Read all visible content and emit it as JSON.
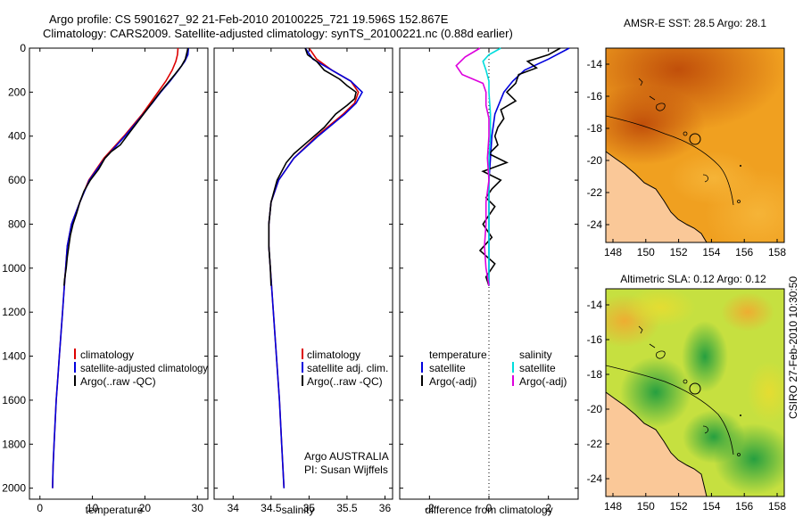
{
  "chart_data": {
    "title": {
      "line1": "Argo profile: CS 5901627_92 21-Feb-2010 20100225_721 19.596S 152.867E",
      "line2": "Climatology: CARS2009. Satellite-adjusted climatology: synTS_20100221.nc (0.88d earlier)"
    },
    "depth_ylim": [
      0,
      2050
    ],
    "depth_ticks": [
      0,
      200,
      400,
      600,
      800,
      1000,
      1200,
      1400,
      1600,
      1800,
      2000
    ],
    "temperature_panel": {
      "type": "line",
      "xlabel": "temperature",
      "xlim": [
        -2,
        32
      ],
      "xticks": [
        0,
        10,
        20,
        30
      ],
      "legend": [
        "climatology",
        "satellite-adjusted climatology",
        "Argo(..raw -QC)"
      ],
      "series": [
        {
          "name": "climatology",
          "color": "#dd0000",
          "depth": [
            0,
            30,
            60,
            100,
            150,
            200,
            250,
            300,
            400,
            500,
            600,
            700,
            800,
            900,
            1000,
            1100,
            1200,
            1300,
            1400,
            1500,
            1600,
            1700,
            1800,
            1900,
            2000
          ],
          "values": [
            26.3,
            26.2,
            25.9,
            25.2,
            24.0,
            22.5,
            21.0,
            19.5,
            16.0,
            12.2,
            9.3,
            7.6,
            6.0,
            5.2,
            4.9,
            4.6,
            4.3,
            4.0,
            3.7,
            3.4,
            3.1,
            2.9,
            2.7,
            2.5,
            2.4
          ]
        },
        {
          "name": "satellite-adjusted climatology",
          "color": "#0000dd",
          "depth": [
            0,
            30,
            60,
            100,
            150,
            200,
            250,
            300,
            400,
            500,
            600,
            700,
            800,
            900,
            1000,
            1100,
            1200,
            1300,
            1400,
            1500,
            1600,
            1700,
            1800,
            1900,
            2000
          ],
          "values": [
            28.3,
            28.2,
            27.6,
            26.4,
            24.8,
            23.0,
            21.4,
            19.7,
            16.2,
            12.4,
            9.4,
            7.6,
            6.0,
            5.2,
            4.9,
            4.6,
            4.3,
            4.0,
            3.7,
            3.4,
            3.1,
            2.9,
            2.7,
            2.5,
            2.4
          ]
        },
        {
          "name": "Argo(..raw -QC)",
          "color": "#000000",
          "depth": [
            0,
            20,
            50,
            80,
            120,
            160,
            200,
            260,
            320,
            380,
            440,
            470,
            500,
            550,
            600,
            650,
            700,
            750,
            800,
            850,
            900,
            950,
            1000,
            1050,
            1080
          ],
          "values": [
            28.2,
            28.0,
            27.7,
            27.0,
            25.7,
            24.3,
            22.9,
            21.0,
            19.1,
            17.2,
            15.3,
            13.6,
            12.4,
            11.2,
            9.6,
            8.4,
            7.6,
            7.0,
            6.3,
            5.8,
            5.5,
            5.2,
            5.0,
            4.7,
            4.6
          ]
        }
      ]
    },
    "salinity_panel": {
      "type": "line",
      "xlabel": "salinity",
      "xlim": [
        33.75,
        36.1
      ],
      "xticks": [
        34,
        34.5,
        35,
        35.5,
        36
      ],
      "xtick_labels": [
        "34",
        "34.5",
        "35",
        "35.5",
        "36"
      ],
      "legend": [
        "climatology",
        "satellite adj. clim.",
        "Argo(..raw -QC)"
      ],
      "annotation": [
        "Argo AUSTRALIA",
        "PI: Susan Wijffels"
      ],
      "series": [
        {
          "name": "climatology",
          "color": "#dd0000",
          "depth": [
            0,
            50,
            100,
            150,
            200,
            250,
            300,
            400,
            500,
            600,
            700,
            800,
            900,
            1000,
            1200,
            1400,
            1600,
            1800,
            2000
          ],
          "values": [
            35.0,
            35.1,
            35.3,
            35.55,
            35.65,
            35.6,
            35.45,
            35.1,
            34.8,
            34.6,
            34.5,
            34.47,
            34.47,
            34.49,
            34.53,
            34.57,
            34.61,
            34.64,
            34.67
          ]
        },
        {
          "name": "satellite adj. clim.",
          "color": "#0000dd",
          "depth": [
            0,
            50,
            100,
            150,
            200,
            250,
            300,
            400,
            500,
            600,
            700,
            800,
            900,
            1000,
            1200,
            1400,
            1600,
            1800,
            2000
          ],
          "values": [
            34.95,
            35.05,
            35.3,
            35.55,
            35.7,
            35.62,
            35.47,
            35.12,
            34.8,
            34.6,
            34.5,
            34.47,
            34.47,
            34.49,
            34.53,
            34.57,
            34.61,
            34.64,
            34.67
          ]
        },
        {
          "name": "Argo(..raw -QC)",
          "color": "#000000",
          "depth": [
            0,
            30,
            60,
            100,
            140,
            170,
            200,
            230,
            260,
            300,
            360,
            420,
            480,
            520,
            600,
            700,
            800,
            900,
            1000,
            1080
          ],
          "values": [
            34.95,
            34.98,
            35.1,
            35.2,
            35.4,
            35.5,
            35.62,
            35.6,
            35.5,
            35.35,
            35.2,
            35.0,
            34.8,
            34.7,
            34.58,
            34.5,
            34.47,
            34.47,
            34.49,
            34.5
          ]
        }
      ]
    },
    "difference_panel": {
      "type": "line",
      "xlabel": "difference from climatology",
      "xlim": [
        -3,
        3
      ],
      "xticks": [
        -2,
        0,
        2
      ],
      "legend_headers": [
        "temperature",
        "salinity"
      ],
      "legend": [
        "satellite",
        "Argo(-adj)",
        "satellite",
        "Argo(-adj)"
      ],
      "series": [
        {
          "name": "temperature satellite",
          "color": "#0000dd",
          "depth": [
            0,
            50,
            100,
            150,
            200,
            300,
            400,
            500,
            600,
            700,
            800,
            1000,
            1080
          ],
          "values": [
            2.7,
            2.0,
            1.2,
            0.8,
            0.5,
            0.2,
            0.1,
            0.05,
            0.0,
            0.0,
            0.0,
            0.0,
            0.0
          ]
        },
        {
          "name": "temperature Argo(-adj)",
          "color": "#000000",
          "depth": [
            0,
            30,
            60,
            90,
            120,
            160,
            200,
            240,
            280,
            320,
            360,
            400,
            440,
            480,
            520,
            560,
            600,
            640,
            680,
            720,
            760,
            800,
            860,
            920,
            980,
            1040,
            1080
          ],
          "values": [
            2.4,
            2.0,
            1.3,
            1.6,
            1.0,
            0.9,
            0.6,
            0.9,
            0.4,
            0.5,
            0.3,
            0.2,
            0.3,
            0.0,
            0.6,
            -0.2,
            0.4,
            0.1,
            -0.1,
            0.2,
            0.0,
            -0.2,
            0.1,
            -0.3,
            0.2,
            -0.1,
            0.0
          ]
        },
        {
          "name": "salinity satellite",
          "color": "#00dddd",
          "depth": [
            0,
            30,
            60,
            100,
            150,
            200,
            300,
            400,
            500,
            600,
            700,
            800,
            900,
            1000,
            1080
          ],
          "values": [
            0.4,
            0.0,
            -0.2,
            -0.1,
            0.0,
            0.0,
            0.05,
            0.05,
            0.0,
            0.0,
            0.0,
            0.0,
            0.0,
            0.0,
            0.0
          ]
        },
        {
          "name": "salinity Argo(-adj)",
          "color": "#dd00dd",
          "depth": [
            0,
            40,
            80,
            120,
            160,
            200,
            260,
            320,
            400,
            500,
            600,
            700,
            800,
            900,
            1000,
            1080
          ],
          "values": [
            -0.3,
            -0.8,
            -1.1,
            -0.9,
            -0.2,
            -0.1,
            -0.1,
            0.0,
            0.0,
            -0.05,
            0.0,
            -0.1,
            -0.1,
            -0.15,
            -0.1,
            0.0
          ]
        }
      ]
    },
    "maps": [
      {
        "title": "AMSR-E SST: 28.5 Argo: 28.1",
        "xticks": [
          "148",
          "150",
          "152",
          "154",
          "156",
          "158"
        ],
        "yticks": [
          "-14",
          "-16",
          "-18",
          "-20",
          "-22",
          "-24"
        ]
      },
      {
        "title": "Altimetric SLA: 0.12 Argo: 0.12",
        "xticks": [
          "148",
          "150",
          "152",
          "154",
          "156",
          "158"
        ],
        "yticks": [
          "-14",
          "-16",
          "-18",
          "-20",
          "-22",
          "-24"
        ]
      }
    ],
    "credit": "CSIRO 27-Feb-2010 10:30:50"
  },
  "colors": {
    "climatology": "#dd0000",
    "satellite": "#0000dd",
    "argo": "#000000",
    "salinity_satellite": "#00dddd",
    "salinity_argo": "#dd00dd",
    "land": "#fac898",
    "sst_warm": "#d86410",
    "sst_mid": "#f0a020",
    "sla_high": "#f0d020",
    "sla_low": "#30b040"
  }
}
